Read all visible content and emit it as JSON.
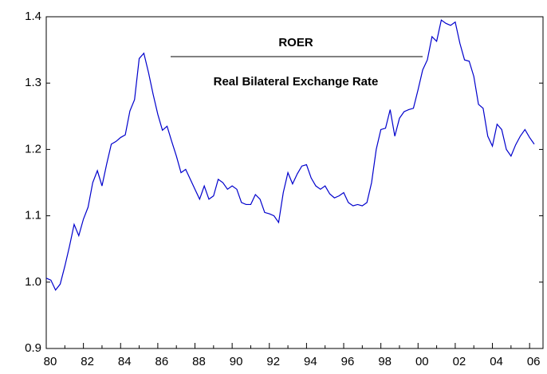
{
  "chart_data": {
    "type": "line",
    "title": "Real Bilateral Exchange Rate",
    "categories": [
      "80",
      null,
      null,
      null,
      null,
      null,
      null,
      null,
      "82",
      null,
      null,
      null,
      null,
      null,
      null,
      null,
      "84",
      null,
      null,
      null,
      null,
      null,
      null,
      null,
      "86",
      null,
      null,
      null,
      null,
      null,
      null,
      null,
      "88",
      null,
      null,
      null,
      null,
      null,
      null,
      null,
      "90",
      null,
      null,
      null,
      null,
      null,
      null,
      null,
      "92",
      null,
      null,
      null,
      null,
      null,
      null,
      null,
      "94",
      null,
      null,
      null,
      null,
      null,
      null,
      null,
      "96",
      null,
      null,
      null,
      null,
      null,
      null,
      null,
      "98",
      null,
      null,
      null,
      null,
      null,
      null,
      null,
      "00",
      null,
      null,
      null,
      null,
      null,
      null,
      null,
      "02",
      null,
      null,
      null,
      null,
      null,
      null,
      null,
      "04",
      null,
      null,
      null,
      null,
      null,
      null,
      null,
      "06",
      null
    ],
    "series": [
      {
        "name": "ROER",
        "color": "#0000cc",
        "values": [
          1.006,
          1.003,
          0.988,
          0.997,
          1.024,
          1.054,
          1.087,
          1.07,
          1.095,
          1.113,
          1.15,
          1.168,
          1.145,
          1.178,
          1.208,
          1.212,
          1.218,
          1.222,
          1.258,
          1.275,
          1.337,
          1.345,
          1.316,
          1.283,
          1.253,
          1.229,
          1.235,
          1.212,
          1.19,
          1.165,
          1.17,
          1.155,
          1.14,
          1.125,
          1.145,
          1.125,
          1.13,
          1.155,
          1.15,
          1.14,
          1.145,
          1.14,
          1.12,
          1.117,
          1.117,
          1.132,
          1.125,
          1.105,
          1.103,
          1.1,
          1.09,
          1.135,
          1.165,
          1.148,
          1.163,
          1.175,
          1.177,
          1.157,
          1.145,
          1.14,
          1.145,
          1.133,
          1.127,
          1.13,
          1.135,
          1.12,
          1.115,
          1.117,
          1.115,
          1.12,
          1.15,
          1.2,
          1.23,
          1.232,
          1.26,
          1.22,
          1.247,
          1.257,
          1.26,
          1.262,
          1.29,
          1.32,
          1.335,
          1.37,
          1.363,
          1.395,
          1.39,
          1.387,
          1.392,
          1.36,
          1.335,
          1.333,
          1.31,
          1.268,
          1.262,
          1.22,
          1.205,
          1.238,
          1.23,
          1.2,
          1.19,
          1.207,
          1.22,
          1.23,
          1.218,
          1.208
        ]
      }
    ],
    "ylim": [
      0.9,
      1.4
    ],
    "yticks": [
      0.9,
      {
        "value": 1.0,
        "label": "1.0"
      },
      1.1,
      1.2,
      1.3,
      1.4
    ],
    "grid": false
  }
}
